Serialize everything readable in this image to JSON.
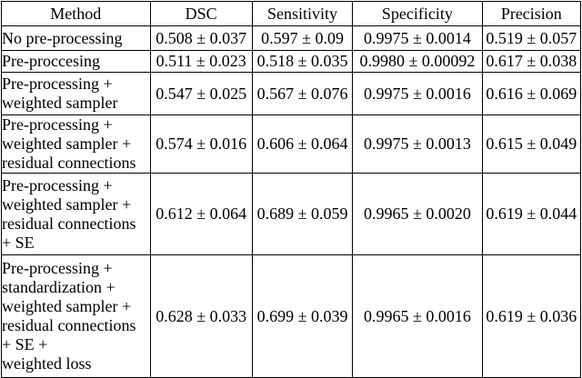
{
  "table": {
    "columns": [
      "Method",
      "DSC",
      "Sensitivity",
      "Specificity",
      "Precision"
    ],
    "rows": [
      {
        "method": "No pre-processing",
        "dsc": "0.508 ± 0.037",
        "sensitivity": "0.597 ± 0.09",
        "specificity": "0.9975 ± 0.0014",
        "precision": "0.519 ± 0.057"
      },
      {
        "method": "Pre-proccesing",
        "dsc": "0.511 ± 0.023",
        "sensitivity": "0.518 ± 0.035",
        "specificity": "0.9980 ± 0.00092",
        "precision": "0.617 ± 0.038"
      },
      {
        "method": "Pre-processing +\nweighted sampler",
        "dsc": "0.547 ± 0.025",
        "sensitivity": "0.567 ± 0.076",
        "specificity": "0.9975 ± 0.0016",
        "precision": "0.616 ± 0.069"
      },
      {
        "method": "Pre-processing +\nweighted sampler +\nresidual connections",
        "dsc": "0.574 ± 0.016",
        "sensitivity": "0.606 ± 0.064",
        "specificity": "0.9975 ± 0.0013",
        "precision": "0.615 ± 0.049"
      },
      {
        "method": "Pre-processing +\nweighted sampler +\nresidual connections\n+ SE",
        "dsc": "0.612 ± 0.064",
        "sensitivity": "0.689 ± 0.059",
        "specificity": "0.9965 ± 0.0020",
        "precision": "0.619 ± 0.044"
      },
      {
        "method": "Pre-processing +\nstandardization +\nweighted sampler +\nresidual connections\n+ SE +\nweighted loss",
        "dsc": "0.628 ± 0.033",
        "sensitivity": "0.699 ± 0.039",
        "specificity": "0.9965 ± 0.0016",
        "precision": "0.619 ± 0.036"
      }
    ]
  },
  "colors": {
    "text": "#000000",
    "border": "#000000",
    "background": "#ffffff"
  }
}
